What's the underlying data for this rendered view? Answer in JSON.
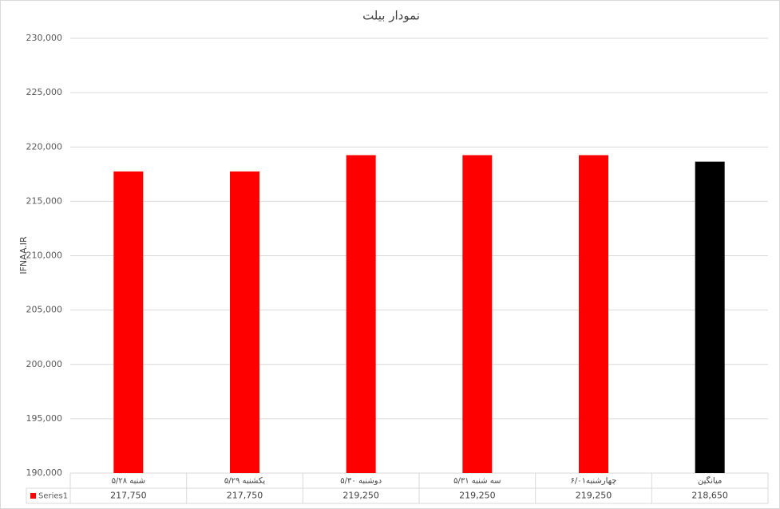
{
  "chart_data": {
    "type": "bar",
    "title": "نمودار بیلت",
    "y_label": "IFNAA.IR",
    "categories": [
      "شنبه ۵/۲۸",
      "یکشنبه ۵/۲۹",
      "دوشنبه ۵/۳۰",
      "سه شنبه ۵/۳۱",
      "چهارشنبه۶/۰۱",
      "میانگین"
    ],
    "series": [
      {
        "name": "Series1",
        "color": "#ff0000",
        "colors": [
          "#ff0000",
          "#ff0000",
          "#ff0000",
          "#ff0000",
          "#ff0000",
          "#000000"
        ],
        "values": [
          217750,
          217750,
          219250,
          219250,
          219250,
          218650
        ],
        "value_labels": [
          "217,750",
          "217,750",
          "219,250",
          "219,250",
          "219,250",
          "218,650"
        ]
      }
    ],
    "ylim": [
      190000,
      230000
    ],
    "yticks": [
      {
        "value": 190000,
        "label": "190,000"
      },
      {
        "value": 195000,
        "label": "195,000"
      },
      {
        "value": 200000,
        "label": "200,000"
      },
      {
        "value": 205000,
        "label": "205,000"
      },
      {
        "value": 210000,
        "label": "210,000"
      },
      {
        "value": 215000,
        "label": "215,000"
      },
      {
        "value": 220000,
        "label": "220,000"
      },
      {
        "value": 225000,
        "label": "225,000"
      },
      {
        "value": 230000,
        "label": "230,000"
      }
    ],
    "grid": true,
    "data_table": true
  }
}
